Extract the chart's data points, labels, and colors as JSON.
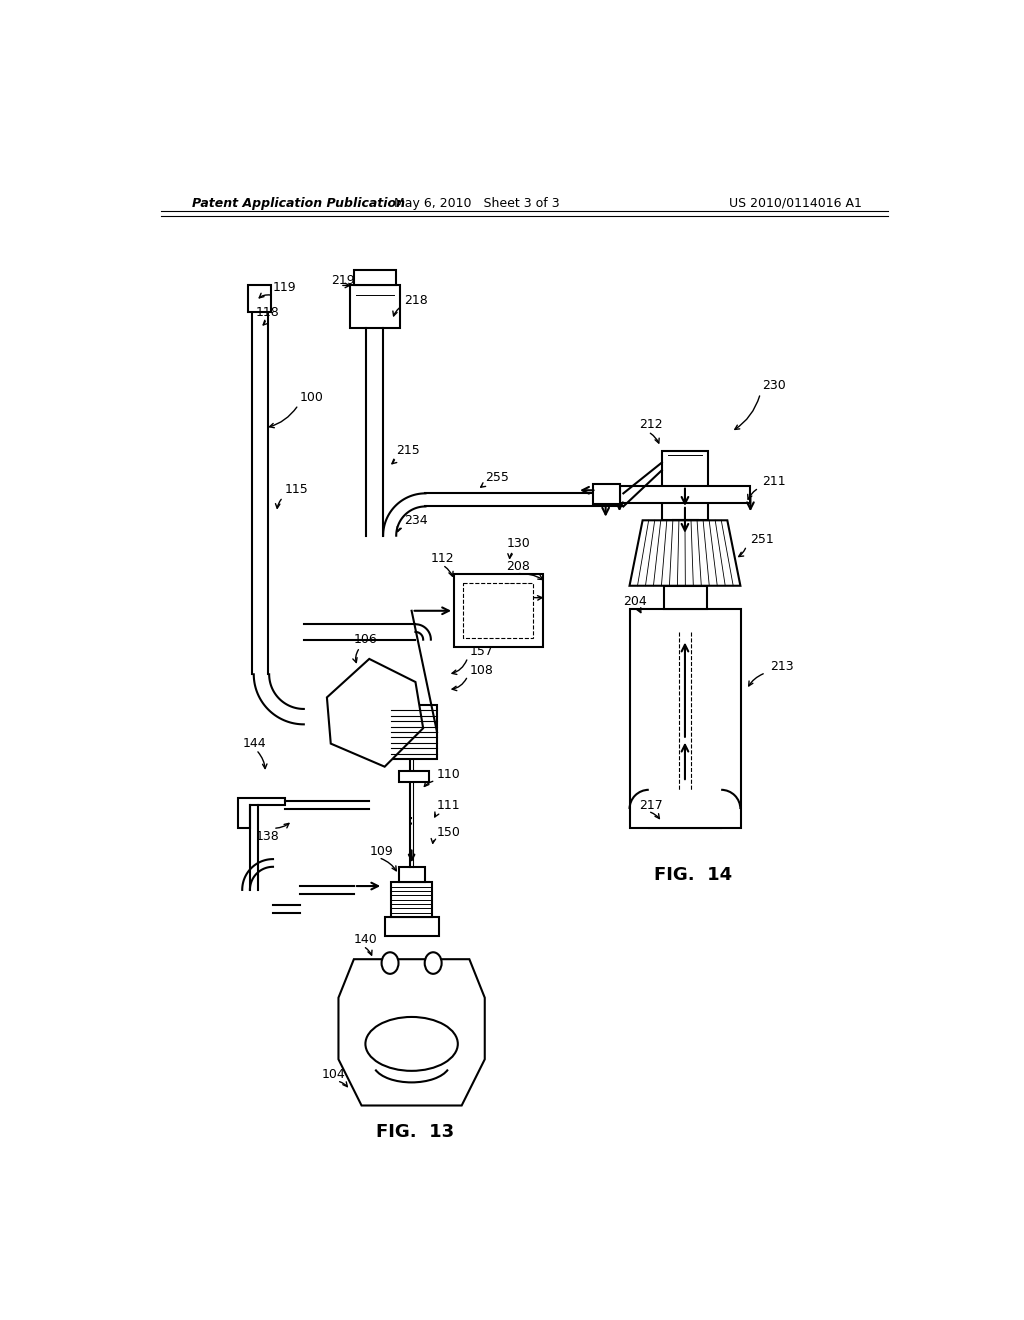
{
  "title_left": "Patent Application Publication",
  "title_center": "May 6, 2010   Sheet 3 of 3",
  "title_right": "US 2010/0114016 A1",
  "fig13_label": "FIG.  13",
  "fig14_label": "FIG.  14",
  "bg_color": "#ffffff"
}
